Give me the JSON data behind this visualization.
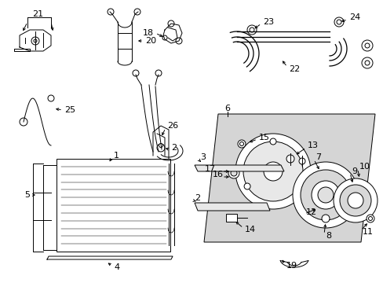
{
  "bg_color": "#ffffff",
  "line_color": "#000000",
  "fig_w": 4.89,
  "fig_h": 3.6,
  "dpi": 100,
  "lw": 0.7,
  "font_size": 7.5
}
